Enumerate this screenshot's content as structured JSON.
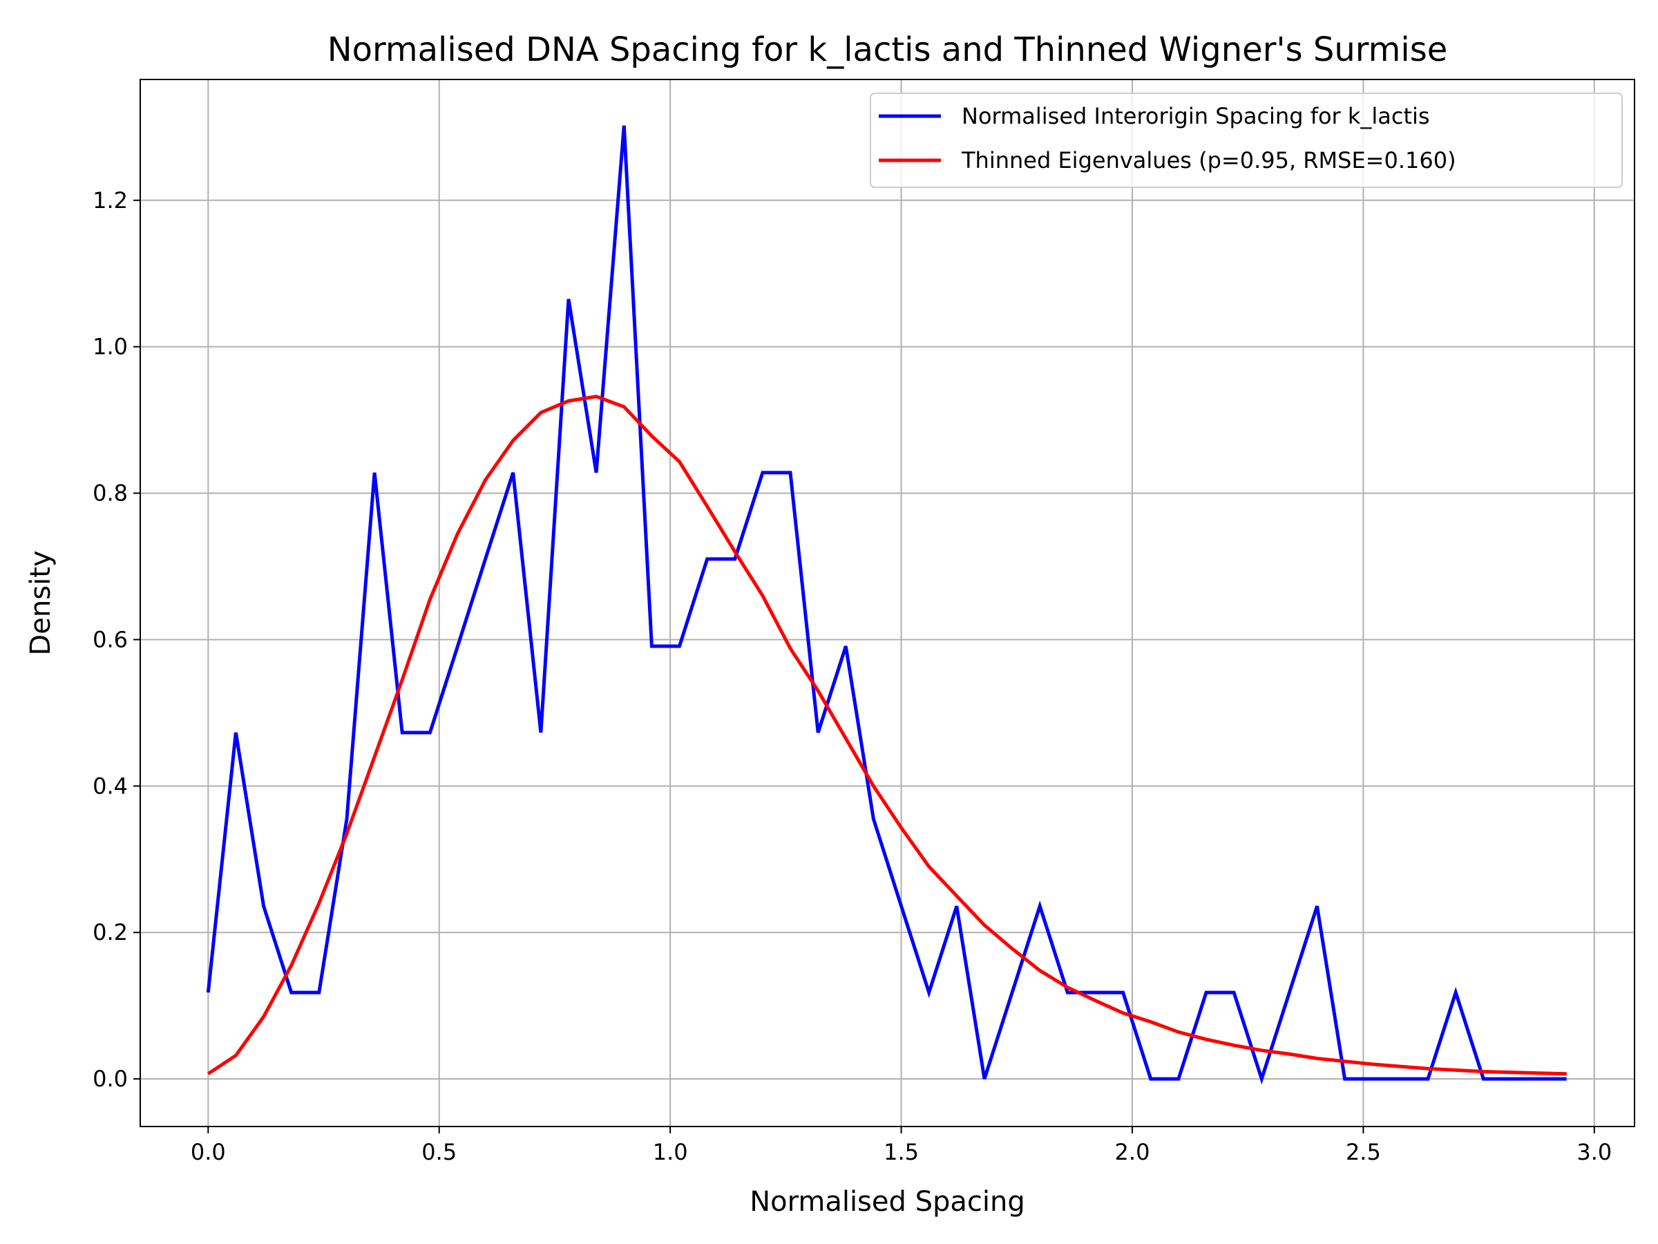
{
  "chart_data": {
    "type": "line",
    "title": "Normalised DNA Spacing for k_lactis and Thinned Wigner's Surmise",
    "xlabel": "Normalised Spacing",
    "ylabel": "Density",
    "xlim": [
      -0.147,
      3.087
    ],
    "ylim": [
      -0.065,
      1.365
    ],
    "xticks": [
      "0.0",
      "0.5",
      "1.0",
      "1.5",
      "2.0",
      "2.5",
      "3.0"
    ],
    "yticks": [
      "0.0",
      "0.2",
      "0.4",
      "0.6",
      "0.8",
      "1.0",
      "1.2"
    ],
    "grid": true,
    "legend_position": "top-right",
    "series": [
      {
        "name": "Normalised Interorigin Spacing for k_lactis",
        "color": "#0000ff",
        "x": [
          0.0,
          0.06,
          0.12,
          0.18,
          0.24,
          0.3,
          0.36,
          0.42,
          0.48,
          0.54,
          0.6,
          0.66,
          0.72,
          0.78,
          0.84,
          0.9,
          0.96,
          1.02,
          1.08,
          1.14,
          1.2,
          1.26,
          1.32,
          1.38,
          1.44,
          1.5,
          1.56,
          1.62,
          1.68,
          1.74,
          1.8,
          1.86,
          1.92,
          1.98,
          2.04,
          2.1,
          2.16,
          2.22,
          2.28,
          2.34,
          2.4,
          2.46,
          2.52,
          2.58,
          2.64,
          2.7,
          2.76,
          2.82,
          2.88,
          2.94
        ],
        "y": [
          0.118,
          0.473,
          0.236,
          0.118,
          0.118,
          0.355,
          0.828,
          0.473,
          0.473,
          0.591,
          0.71,
          0.828,
          0.473,
          1.065,
          0.828,
          1.302,
          0.591,
          0.591,
          0.71,
          0.71,
          0.828,
          0.828,
          0.473,
          0.591,
          0.355,
          0.236,
          0.118,
          0.236,
          0.0,
          0.118,
          0.236,
          0.118,
          0.118,
          0.118,
          0.0,
          0.0,
          0.118,
          0.118,
          0.0,
          0.118,
          0.236,
          0.0,
          0.0,
          0.0,
          0.0,
          0.118,
          0.0,
          0.0,
          0.0,
          0.0
        ]
      },
      {
        "name": "Thinned Eigenvalues (p=0.95, RMSE=0.160)",
        "color": "#ff0000",
        "x": [
          0.0,
          0.06,
          0.12,
          0.18,
          0.24,
          0.3,
          0.36,
          0.42,
          0.48,
          0.54,
          0.6,
          0.66,
          0.72,
          0.78,
          0.84,
          0.9,
          0.96,
          1.02,
          1.08,
          1.14,
          1.2,
          1.26,
          1.32,
          1.38,
          1.44,
          1.5,
          1.56,
          1.62,
          1.68,
          1.74,
          1.8,
          1.86,
          1.92,
          1.98,
          2.04,
          2.1,
          2.16,
          2.22,
          2.28,
          2.34,
          2.4,
          2.46,
          2.52,
          2.58,
          2.64,
          2.7,
          2.76,
          2.82,
          2.88,
          2.94
        ],
        "y": [
          0.007,
          0.032,
          0.085,
          0.155,
          0.24,
          0.335,
          0.44,
          0.545,
          0.655,
          0.745,
          0.818,
          0.872,
          0.91,
          0.926,
          0.932,
          0.918,
          0.878,
          0.843,
          0.782,
          0.72,
          0.66,
          0.588,
          0.53,
          0.465,
          0.4,
          0.343,
          0.29,
          0.25,
          0.21,
          0.178,
          0.148,
          0.125,
          0.107,
          0.09,
          0.078,
          0.064,
          0.054,
          0.046,
          0.039,
          0.034,
          0.028,
          0.024,
          0.02,
          0.017,
          0.014,
          0.012,
          0.01,
          0.009,
          0.008,
          0.007
        ]
      }
    ]
  }
}
